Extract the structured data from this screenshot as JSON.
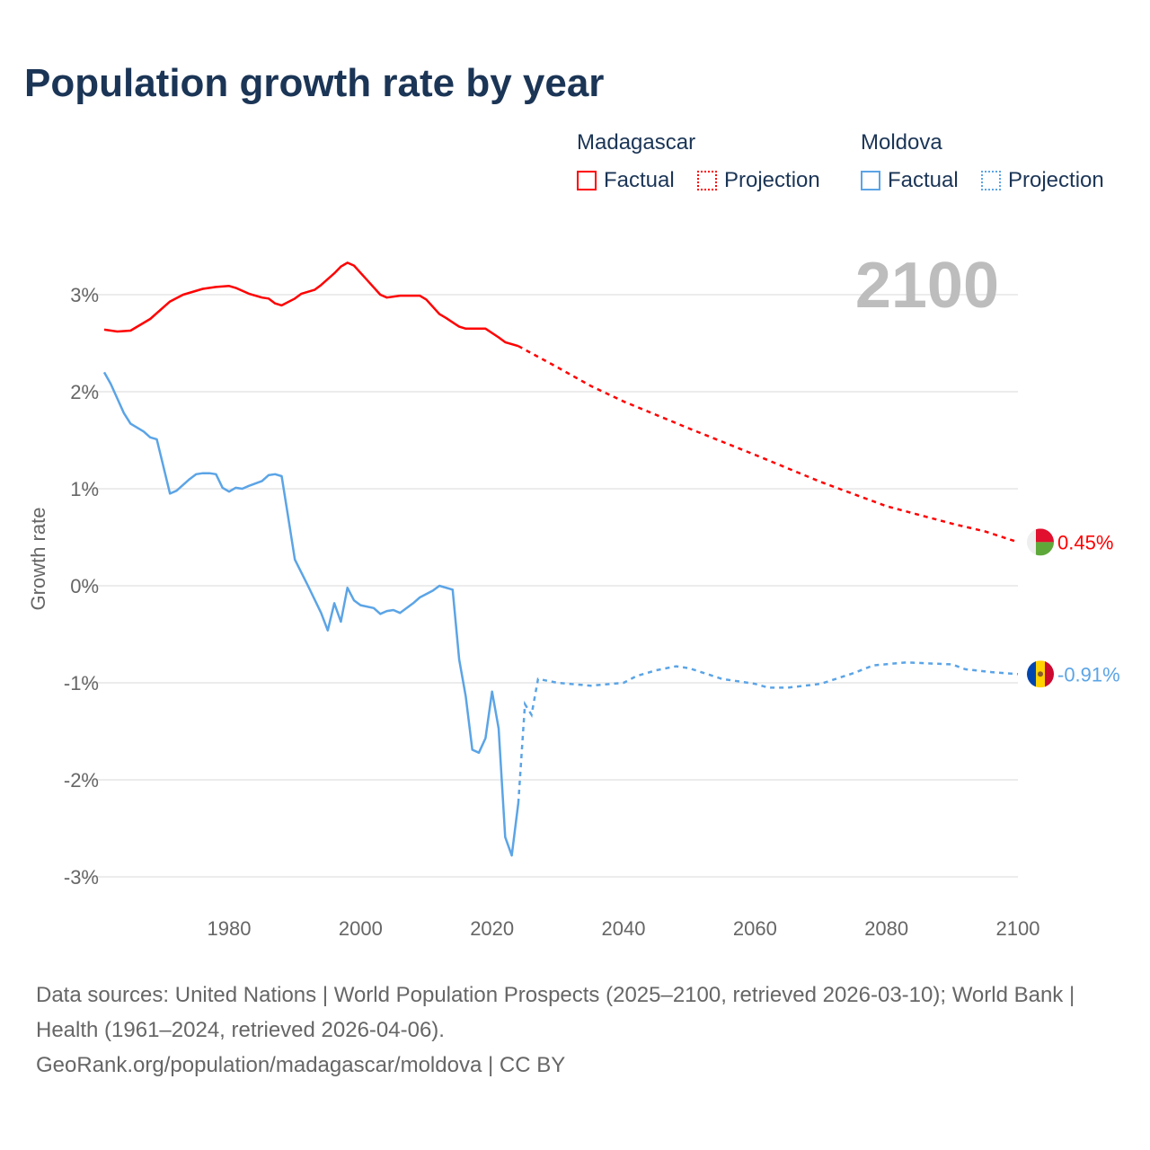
{
  "title": "Population growth rate by year",
  "legend": {
    "groups": [
      {
        "country": "Madagascar",
        "color": "#ff0000",
        "factual": "Factual",
        "projection": "Projection"
      },
      {
        "country": "Moldova",
        "color": "#5ba4e6",
        "factual": "Factual",
        "projection": "Projection"
      }
    ]
  },
  "footer": {
    "line1": "Data sources: United Nations | World Population Prospects (2025–2100, retrieved 2026-03-10); World Bank | Health (1961–2024, retrieved 2026-04-06).",
    "line2": "GeoRank.org/population/madagascar/moldova | CC BY"
  },
  "chart_data": {
    "type": "line",
    "title": "Population growth rate by year",
    "ylabel": "Growth rate",
    "xlim": [
      1961,
      2100
    ],
    "ylim": [
      -3.3,
      3.6
    ],
    "xticks": [
      1980,
      2000,
      2020,
      2040,
      2060,
      2080,
      2100
    ],
    "xtick_labels": [
      "1980",
      "2000",
      "2020",
      "2040",
      "2060",
      "2080",
      "2100"
    ],
    "yticks": [
      3,
      2,
      1,
      0,
      -1,
      -2,
      -3
    ],
    "ytick_labels": [
      "3%",
      "2%",
      "1%",
      "0%",
      "-1%",
      "-2%",
      "-3%"
    ],
    "year_label": "2100",
    "grid": true,
    "series": [
      {
        "name": "Madagascar",
        "color": "#ff0000",
        "end_label": "0.45%",
        "factual": [
          [
            1961,
            2.64
          ],
          [
            1963,
            2.62
          ],
          [
            1965,
            2.63
          ],
          [
            1968,
            2.75
          ],
          [
            1971,
            2.93
          ],
          [
            1973,
            3.0
          ],
          [
            1976,
            3.06
          ],
          [
            1978,
            3.08
          ],
          [
            1980,
            3.09
          ],
          [
            1981,
            3.07
          ],
          [
            1983,
            3.01
          ],
          [
            1985,
            2.97
          ],
          [
            1986,
            2.96
          ],
          [
            1987,
            2.91
          ],
          [
            1988,
            2.89
          ],
          [
            1990,
            2.96
          ],
          [
            1991,
            3.01
          ],
          [
            1993,
            3.05
          ],
          [
            1994,
            3.1
          ],
          [
            1996,
            3.22
          ],
          [
            1997,
            3.29
          ],
          [
            1998,
            3.33
          ],
          [
            1999,
            3.3
          ],
          [
            2001,
            3.15
          ],
          [
            2003,
            3.0
          ],
          [
            2004,
            2.97
          ],
          [
            2006,
            2.99
          ],
          [
            2009,
            2.99
          ],
          [
            2010,
            2.95
          ],
          [
            2012,
            2.8
          ],
          [
            2013,
            2.76
          ],
          [
            2015,
            2.67
          ],
          [
            2016,
            2.65
          ],
          [
            2019,
            2.65
          ],
          [
            2021,
            2.56
          ],
          [
            2022,
            2.51
          ],
          [
            2024,
            2.47
          ]
        ],
        "projection": [
          [
            2024,
            2.47
          ],
          [
            2030,
            2.25
          ],
          [
            2035,
            2.06
          ],
          [
            2040,
            1.9
          ],
          [
            2050,
            1.62
          ],
          [
            2060,
            1.35
          ],
          [
            2070,
            1.07
          ],
          [
            2080,
            0.82
          ],
          [
            2090,
            0.64
          ],
          [
            2095,
            0.56
          ],
          [
            2100,
            0.45
          ]
        ]
      },
      {
        "name": "Moldova",
        "color": "#5ba4e6",
        "end_label": "-0.91%",
        "factual": [
          [
            1961,
            2.2
          ],
          [
            1962,
            2.08
          ],
          [
            1963,
            1.93
          ],
          [
            1964,
            1.78
          ],
          [
            1965,
            1.67
          ],
          [
            1967,
            1.59
          ],
          [
            1968,
            1.53
          ],
          [
            1969,
            1.51
          ],
          [
            1971,
            0.95
          ],
          [
            1972,
            0.98
          ],
          [
            1974,
            1.1
          ],
          [
            1975,
            1.15
          ],
          [
            1976,
            1.16
          ],
          [
            1977,
            1.16
          ],
          [
            1978,
            1.15
          ],
          [
            1979,
            1.01
          ],
          [
            1980,
            0.97
          ],
          [
            1981,
            1.01
          ],
          [
            1982,
            1.0
          ],
          [
            1983,
            1.03
          ],
          [
            1985,
            1.08
          ],
          [
            1986,
            1.14
          ],
          [
            1987,
            1.15
          ],
          [
            1988,
            1.13
          ],
          [
            1989,
            0.7
          ],
          [
            1990,
            0.27
          ],
          [
            1992,
            0.0
          ],
          [
            1994,
            -0.28
          ],
          [
            1995,
            -0.46
          ],
          [
            1996,
            -0.18
          ],
          [
            1997,
            -0.37
          ],
          [
            1998,
            -0.02
          ],
          [
            1999,
            -0.15
          ],
          [
            2000,
            -0.2
          ],
          [
            2002,
            -0.23
          ],
          [
            2003,
            -0.29
          ],
          [
            2004,
            -0.26
          ],
          [
            2005,
            -0.25
          ],
          [
            2006,
            -0.28
          ],
          [
            2007,
            -0.23
          ],
          [
            2008,
            -0.18
          ],
          [
            2009,
            -0.12
          ],
          [
            2011,
            -0.05
          ],
          [
            2012,
            0.0
          ],
          [
            2014,
            -0.04
          ],
          [
            2015,
            -0.76
          ],
          [
            2016,
            -1.14
          ],
          [
            2017,
            -1.69
          ],
          [
            2018,
            -1.72
          ],
          [
            2019,
            -1.57
          ],
          [
            2020,
            -1.09
          ],
          [
            2021,
            -1.47
          ],
          [
            2022,
            -2.59
          ],
          [
            2023,
            -2.78
          ],
          [
            2024,
            -2.24
          ]
        ],
        "projection": [
          [
            2024,
            -2.24
          ],
          [
            2025,
            -1.22
          ],
          [
            2026,
            -1.33
          ],
          [
            2027,
            -0.96
          ],
          [
            2030,
            -1.0
          ],
          [
            2035,
            -1.03
          ],
          [
            2040,
            -1.0
          ],
          [
            2042,
            -0.93
          ],
          [
            2045,
            -0.87
          ],
          [
            2048,
            -0.83
          ],
          [
            2050,
            -0.85
          ],
          [
            2055,
            -0.96
          ],
          [
            2060,
            -1.01
          ],
          [
            2062,
            -1.05
          ],
          [
            2065,
            -1.05
          ],
          [
            2070,
            -1.01
          ],
          [
            2075,
            -0.9
          ],
          [
            2078,
            -0.82
          ],
          [
            2083,
            -0.79
          ],
          [
            2090,
            -0.81
          ],
          [
            2092,
            -0.86
          ],
          [
            2096,
            -0.89
          ],
          [
            2100,
            -0.91
          ]
        ]
      }
    ]
  }
}
